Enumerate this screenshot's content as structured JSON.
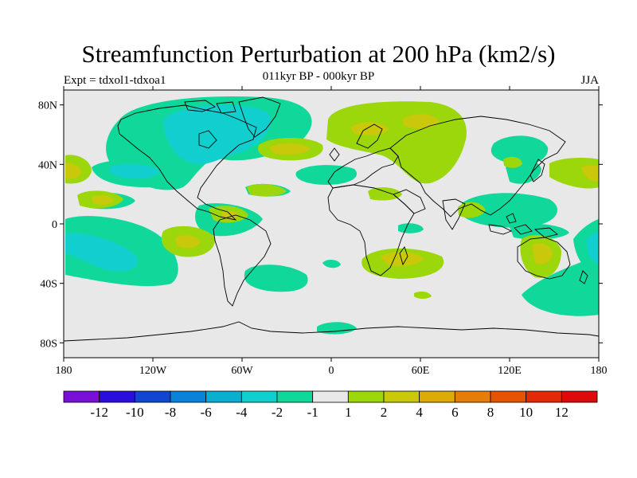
{
  "header": {
    "title": "Streamfunction Perturbation at 200 hPa (km2/s)",
    "left_label": "Expt = tdxol1-tdxoa1",
    "center_label": "011kyr BP - 000kyr BP",
    "right_label": "JJA"
  },
  "map": {
    "lon_range": [
      -180,
      180
    ],
    "lat_range": [
      -90,
      90
    ],
    "background_color": "#e8e8e8",
    "lon_ticks": [
      {
        "value": -180,
        "label": "180"
      },
      {
        "value": -120,
        "label": "120W"
      },
      {
        "value": -60,
        "label": "60W"
      },
      {
        "value": 0,
        "label": "0"
      },
      {
        "value": 60,
        "label": "60E"
      },
      {
        "value": 120,
        "label": "120E"
      },
      {
        "value": 180,
        "label": "180"
      }
    ],
    "lat_ticks": [
      {
        "value": 80,
        "label": "80N"
      },
      {
        "value": 40,
        "label": "40N"
      },
      {
        "value": 0,
        "label": "0"
      },
      {
        "value": -40,
        "label": "40S"
      },
      {
        "value": -80,
        "label": "80S"
      }
    ]
  },
  "colorbar": {
    "colors": [
      "#7a10d6",
      "#2a0fdc",
      "#1046d0",
      "#0a82d8",
      "#0aaed0",
      "#12cfcf",
      "#10d89a",
      "#e8e8e8",
      "#9bd70a",
      "#c9c80a",
      "#dcab08",
      "#e47e08",
      "#e45404",
      "#e22a08",
      "#dc0a0a"
    ],
    "labels": [
      "-12",
      "-10",
      "-8",
      "-6",
      "-4",
      "-2",
      "-1",
      "1",
      "2",
      "4",
      "6",
      "8",
      "10",
      "12"
    ]
  }
}
